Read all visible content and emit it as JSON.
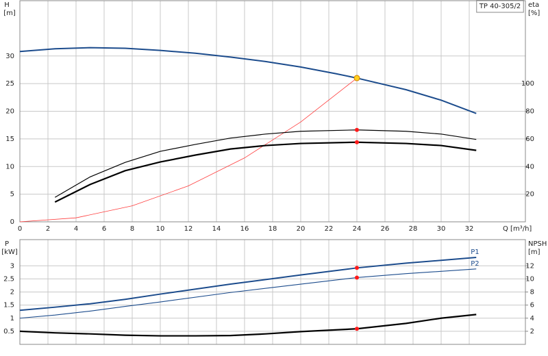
{
  "chart_data": [
    {
      "type": "line",
      "label_box": "TP 40-305/2",
      "ylabel": "H",
      "yunit": "[m]",
      "y2label": "eta",
      "y2unit": "[%]",
      "xlabel": "Q [m³/h]",
      "xlim": [
        0,
        36
      ],
      "xticks": [
        0,
        2,
        4,
        6,
        8,
        10,
        12,
        14,
        16,
        18,
        20,
        22,
        24,
        26,
        28,
        30,
        32
      ],
      "ylim": [
        0,
        40
      ],
      "yticks": [
        0,
        5,
        10,
        15,
        20,
        25,
        30
      ],
      "y2lim": [
        0,
        160
      ],
      "y2ticks": [
        20,
        40,
        60,
        80,
        100
      ],
      "grid": true,
      "series": [
        {
          "color": "#1b4b8c",
          "linewidth": 2,
          "x": [
            0,
            2.5,
            5,
            7.5,
            10,
            12.5,
            15,
            17.5,
            20,
            22.5,
            24,
            27.5,
            30,
            32.5
          ],
          "values": [
            30.8,
            31.3,
            31.5,
            31.4,
            31.0,
            30.5,
            29.8,
            29.0,
            28.0,
            26.8,
            26.0,
            23.9,
            22.0,
            19.6
          ]
        },
        {
          "color": "#ff3b3b",
          "linewidth": 0.8,
          "x": [
            0,
            4,
            8,
            12,
            16,
            20,
            24
          ],
          "values": [
            0,
            0.72,
            2.89,
            6.5,
            11.56,
            18.06,
            26.0
          ]
        },
        {
          "color": "#000000",
          "linewidth": 1.2,
          "axis": "y2",
          "x": [
            2.5,
            5,
            7.5,
            10,
            12.5,
            15,
            17.5,
            20,
            24,
            27.5,
            30,
            32.5
          ],
          "values": [
            17.7,
            32.5,
            43,
            51,
            56,
            60.6,
            63.5,
            65.5,
            66.5,
            65.5,
            63.5,
            59.6
          ]
        },
        {
          "color": "#000000",
          "linewidth": 2.2,
          "axis": "y2",
          "x": [
            2.5,
            5,
            7.5,
            10,
            12.5,
            15,
            17.5,
            20,
            24,
            27.5,
            30,
            32.5
          ],
          "values": [
            14.3,
            27,
            37,
            43.3,
            48.3,
            52.7,
            55.2,
            56.7,
            57.6,
            56.7,
            55.2,
            51.7
          ]
        }
      ],
      "markers": [
        {
          "x": 24,
          "y": 26.0,
          "color": "#ffd020"
        },
        {
          "x": 24,
          "y": 66.5,
          "color": "#ff1a1a",
          "axis": "y2"
        },
        {
          "x": 24,
          "y": 57.6,
          "color": "#ff1a1a",
          "axis": "y2"
        }
      ]
    },
    {
      "type": "line",
      "ylabel": "P",
      "yunit": "[kW]",
      "y2label": "NPSH",
      "y2unit": "[m]",
      "xlim": [
        0,
        36
      ],
      "xticks": [
        0,
        2,
        4,
        6,
        8,
        10,
        12,
        14,
        16,
        18,
        20,
        22,
        24,
        26,
        28,
        30,
        32
      ],
      "ylim": [
        0,
        4
      ],
      "yticks": [
        0.5,
        1.0,
        1.5,
        2.0,
        2.5,
        3.0
      ],
      "y2lim": [
        0,
        16
      ],
      "y2ticks": [
        2,
        4,
        6,
        8,
        10,
        12
      ],
      "grid": true,
      "series": [
        {
          "name": "P1",
          "color": "#1b4b8c",
          "linewidth": 2,
          "x": [
            0,
            2.5,
            5,
            7.5,
            10,
            15,
            20,
            24,
            27.5,
            32.5
          ],
          "values": [
            1.3,
            1.42,
            1.55,
            1.72,
            1.92,
            2.3,
            2.65,
            2.92,
            3.1,
            3.32
          ]
        },
        {
          "name": "P2",
          "color": "#1b4b8c",
          "linewidth": 1.1,
          "x": [
            0,
            2.5,
            5,
            7.5,
            10,
            15,
            20,
            24,
            27.5,
            32.5
          ],
          "values": [
            1.0,
            1.12,
            1.27,
            1.45,
            1.62,
            1.98,
            2.3,
            2.55,
            2.7,
            2.88
          ]
        },
        {
          "color": "#000000",
          "linewidth": 2.2,
          "axis": "y2",
          "x": [
            0,
            2.5,
            5,
            7.5,
            10,
            12.5,
            15,
            17.5,
            20,
            24,
            27.5,
            30,
            32.5
          ],
          "values": [
            2.0,
            1.76,
            1.6,
            1.4,
            1.3,
            1.3,
            1.35,
            1.6,
            1.95,
            2.38,
            3.2,
            4.0,
            4.56
          ]
        }
      ],
      "markers": [
        {
          "x": 24,
          "y": 2.92,
          "color": "#ff1a1a"
        },
        {
          "x": 24,
          "y": 2.55,
          "color": "#ff1a1a"
        },
        {
          "x": 24,
          "y": 2.38,
          "color": "#ff1a1a",
          "axis": "y2"
        }
      ]
    }
  ]
}
